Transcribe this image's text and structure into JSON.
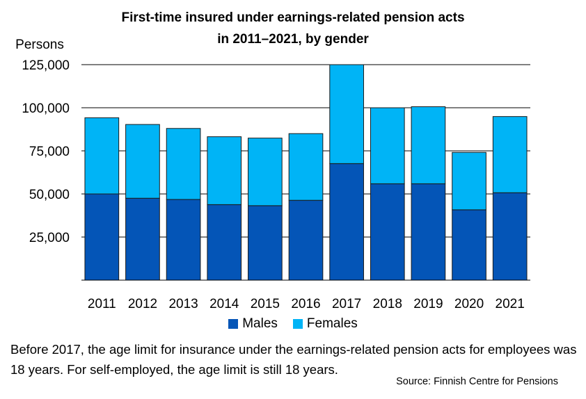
{
  "chart_data": {
    "type": "bar",
    "stacked": true,
    "title_lines": [
      "First-time insured under earnings-related pension acts",
      "in 2011–2021, by gender"
    ],
    "ylabel": "Persons",
    "categories": [
      "2011",
      "2012",
      "2013",
      "2014",
      "2015",
      "2016",
      "2017",
      "2018",
      "2019",
      "2020",
      "2021"
    ],
    "ylim": [
      0,
      125000
    ],
    "yticks": [
      25000,
      50000,
      75000,
      100000,
      125000
    ],
    "ytick_labels": [
      "25,000",
      "50,000",
      "75,000",
      "100,000",
      "125,000"
    ],
    "grid": true,
    "legend_position": "bottom",
    "series": [
      {
        "name": "Males",
        "color": "#0455B7",
        "values": [
          50000,
          47500,
          46800,
          43800,
          43200,
          46300,
          67600,
          55900,
          55900,
          40800,
          50700
        ]
      },
      {
        "name": "Females",
        "color": "#00B4F6",
        "values": [
          44200,
          42800,
          41200,
          39400,
          39200,
          38700,
          57400,
          44100,
          44700,
          33300,
          44200
        ]
      }
    ]
  },
  "note": "Before 2017, the age limit for insurance under the earnings-related pension acts for employees was 18 years. For self-employed, the age limit is still 18 years.",
  "source": "Source: Finnish Centre for Pensions"
}
